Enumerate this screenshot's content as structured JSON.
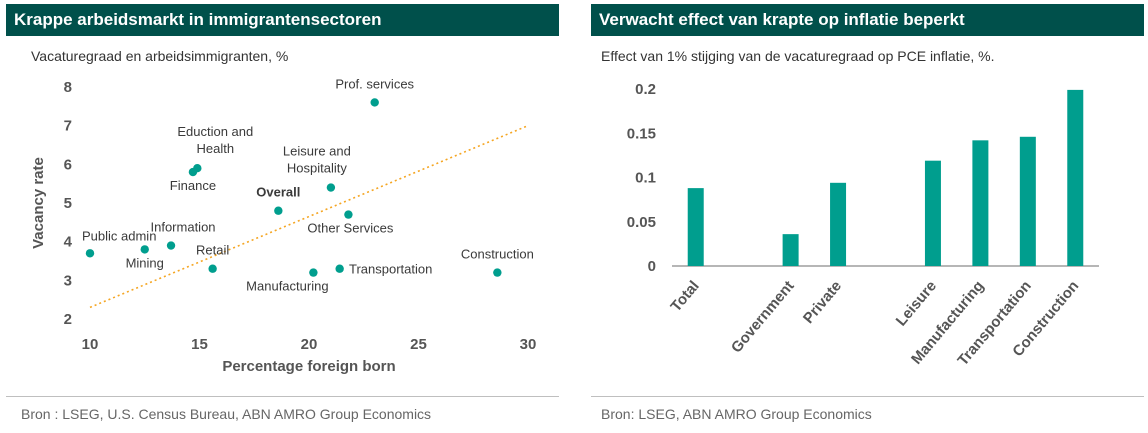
{
  "colors": {
    "header_bg": "#00504b",
    "accent": "#009e8e",
    "trend": "#f5a623",
    "text": "#3a3a3a",
    "axis": "#555555"
  },
  "left": {
    "title": "Krappe arbeidsmarkt in immigrantensectoren",
    "subtitle": "Vacaturegraad en arbeidsimmigranten, %",
    "source": "Bron :  LSEG, U.S. Census Bureau, ABN AMRO Group Economics",
    "chart_data": {
      "type": "scatter",
      "xlabel": "Percentage foreign born",
      "ylabel": "Vacancy rate",
      "xlim": [
        10,
        30
      ],
      "ylim": [
        2,
        8
      ],
      "x_ticks": [
        10,
        15,
        20,
        25,
        30
      ],
      "y_ticks": [
        2,
        3,
        4,
        5,
        6,
        7,
        8
      ],
      "grid": false,
      "trendline": {
        "x": [
          10,
          30
        ],
        "y": [
          2.3,
          7.0
        ],
        "style": "dotted"
      },
      "points": [
        {
          "label": "Prof. services",
          "x": 23.0,
          "y": 7.6,
          "bold": false
        },
        {
          "label": "Eduction and\nHealth",
          "x": 14.9,
          "y": 5.9,
          "bold": false
        },
        {
          "label": "Finance",
          "x": 14.7,
          "y": 5.8,
          "bold": false
        },
        {
          "label": "Leisure and\nHospitality",
          "x": 21.0,
          "y": 5.4,
          "bold": false
        },
        {
          "label": "Overall",
          "x": 18.6,
          "y": 4.8,
          "bold": true
        },
        {
          "label": "Other Services",
          "x": 21.8,
          "y": 4.7,
          "bold": false
        },
        {
          "label": "Information",
          "x": 13.7,
          "y": 3.9,
          "bold": false
        },
        {
          "label": "Mining",
          "x": 12.5,
          "y": 3.8,
          "bold": false
        },
        {
          "label": "Public admin",
          "x": 10.0,
          "y": 3.7,
          "bold": false
        },
        {
          "label": "Retail",
          "x": 15.6,
          "y": 3.3,
          "bold": false
        },
        {
          "label": "Manufacturing",
          "x": 20.2,
          "y": 3.2,
          "bold": false
        },
        {
          "label": "Transportation",
          "x": 21.4,
          "y": 3.3,
          "bold": false
        },
        {
          "label": "Construction",
          "x": 28.6,
          "y": 3.2,
          "bold": false
        }
      ]
    }
  },
  "right": {
    "title": "Verwacht effect van krapte op inflatie beperkt",
    "subtitle": "Effect van 1% stijging van de vacaturegraad op PCE inflatie, %.",
    "source": "Bron: LSEG, ABN AMRO Group Economics",
    "chart_data": {
      "type": "bar",
      "categories": [
        "Total",
        "",
        "Government",
        "Private",
        "",
        "Leisure",
        "Manufacturing",
        "Transportation",
        "Construction"
      ],
      "values": [
        0.088,
        null,
        0.036,
        0.094,
        null,
        0.119,
        0.142,
        0.146,
        0.199
      ],
      "ylim": [
        0,
        0.2
      ],
      "y_ticks": [
        0,
        0.05,
        0.1,
        0.15,
        0.2
      ],
      "y_tick_labels": [
        "0",
        "0.05",
        "0.1",
        "0.15",
        "0.2"
      ],
      "grid": false
    }
  }
}
